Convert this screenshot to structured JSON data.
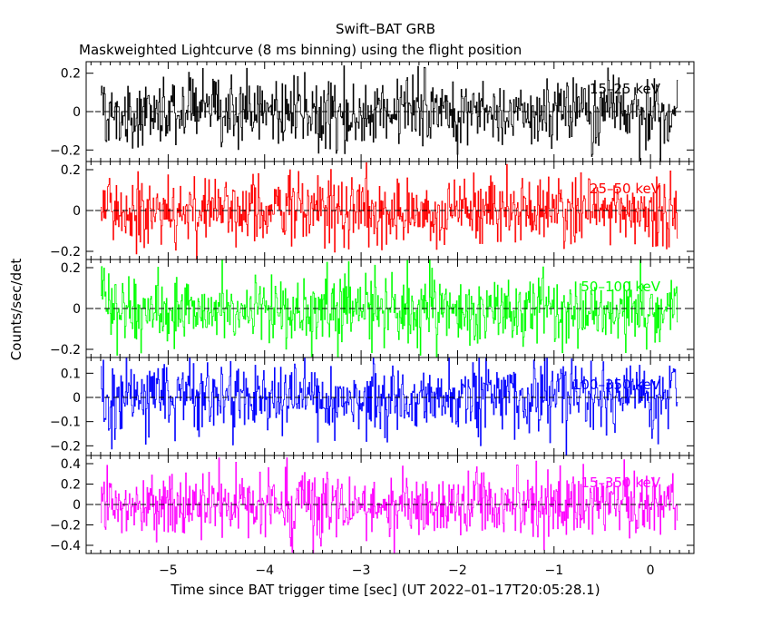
{
  "chart_data": {
    "type": "line",
    "title": "Swift–BAT GRB",
    "subtitle": "Maskweighted Lightcurve (8 ms binning) using the flight position",
    "xlabel": "Time since BAT trigger time [sec] (UT 2022–01–17T20:05:28.1)",
    "ylabel": "Counts/sec/det",
    "xlim": [
      -5.85,
      0.45
    ],
    "data_xrange": [
      -5.7,
      0.28
    ],
    "x_ticks": [
      -5,
      -4,
      -3,
      -2,
      -1,
      0
    ],
    "x_tick_labels": [
      "−5",
      "−4",
      "−3",
      "−2",
      "−1",
      "0"
    ],
    "grid": false,
    "reference_line": 0,
    "panels": [
      {
        "band": "15–25 keV",
        "color": "#000000",
        "ylim": [
          -0.26,
          0.26
        ],
        "y_ticks": [
          -0.2,
          0,
          0.2
        ],
        "y_tick_labels": [
          "−0.2",
          "0",
          "0.2"
        ],
        "noise_amplitude": 0.085
      },
      {
        "band": "25–50 keV",
        "color": "#ff0000",
        "ylim": [
          -0.24,
          0.24
        ],
        "y_ticks": [
          -0.2,
          0,
          0.2
        ],
        "y_tick_labels": [
          "−0.2",
          "0",
          "0.2"
        ],
        "noise_amplitude": 0.085
      },
      {
        "band": "50–100 keV",
        "color": "#00ff00",
        "ylim": [
          -0.24,
          0.24
        ],
        "y_ticks": [
          -0.2,
          0,
          0.2
        ],
        "y_tick_labels": [
          "−0.2",
          "0",
          "0.2"
        ],
        "noise_amplitude": 0.085
      },
      {
        "band": "100–350 keV",
        "color": "#0000ff",
        "ylim": [
          -0.24,
          0.165
        ],
        "y_ticks": [
          -0.2,
          -0.1,
          0,
          0.1
        ],
        "y_tick_labels": [
          "−0.2",
          "−0.1",
          "0",
          "0.1"
        ],
        "noise_amplitude": 0.075
      },
      {
        "band": "15–350 keV",
        "color": "#ff00ff",
        "ylim": [
          -0.48,
          0.48
        ],
        "y_ticks": [
          -0.4,
          -0.2,
          0,
          0.2,
          0.4
        ],
        "y_tick_labels": [
          "−0.4",
          "−0.2",
          "0",
          "0.2",
          "0.4"
        ],
        "noise_amplitude": 0.16
      }
    ]
  }
}
